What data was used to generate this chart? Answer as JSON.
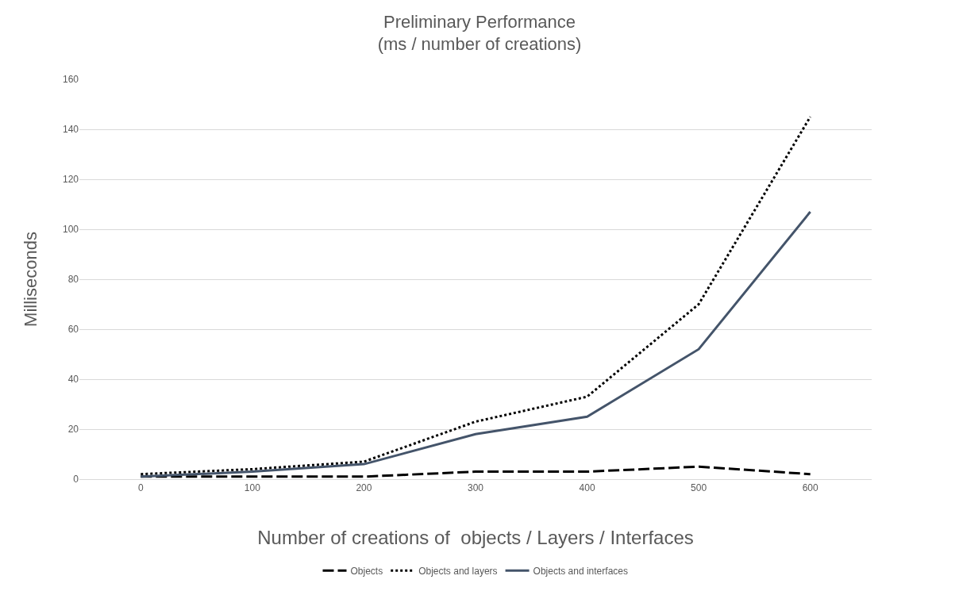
{
  "chart_data": {
    "type": "line",
    "title": "Preliminary Performance",
    "subtitle": "(ms / number of creations)",
    "xlabel": "Number of creations of  objects / Layers / Interfaces",
    "ylabel": "Milliseconds",
    "categories": [
      "0",
      "100",
      "200",
      "300",
      "400",
      "500",
      "600"
    ],
    "series": [
      {
        "name": "Objects",
        "color": "#000000",
        "line_style": "dashed",
        "values": [
          1,
          1,
          1,
          3,
          3,
          5,
          2
        ]
      },
      {
        "name": "Objects and layers",
        "color": "#000000",
        "line_style": "dotted",
        "values": [
          2,
          4,
          7,
          23,
          33,
          70,
          145
        ]
      },
      {
        "name": "Objects and interfaces",
        "color": "#44546a",
        "line_style": "solid",
        "values": [
          1,
          3,
          6,
          18,
          25,
          52,
          107
        ]
      }
    ],
    "ylim": [
      0,
      160
    ],
    "yticks": [
      0,
      20,
      40,
      60,
      80,
      100,
      120,
      140,
      160
    ],
    "grid": "y",
    "legend": "bottom",
    "marker": "none"
  }
}
